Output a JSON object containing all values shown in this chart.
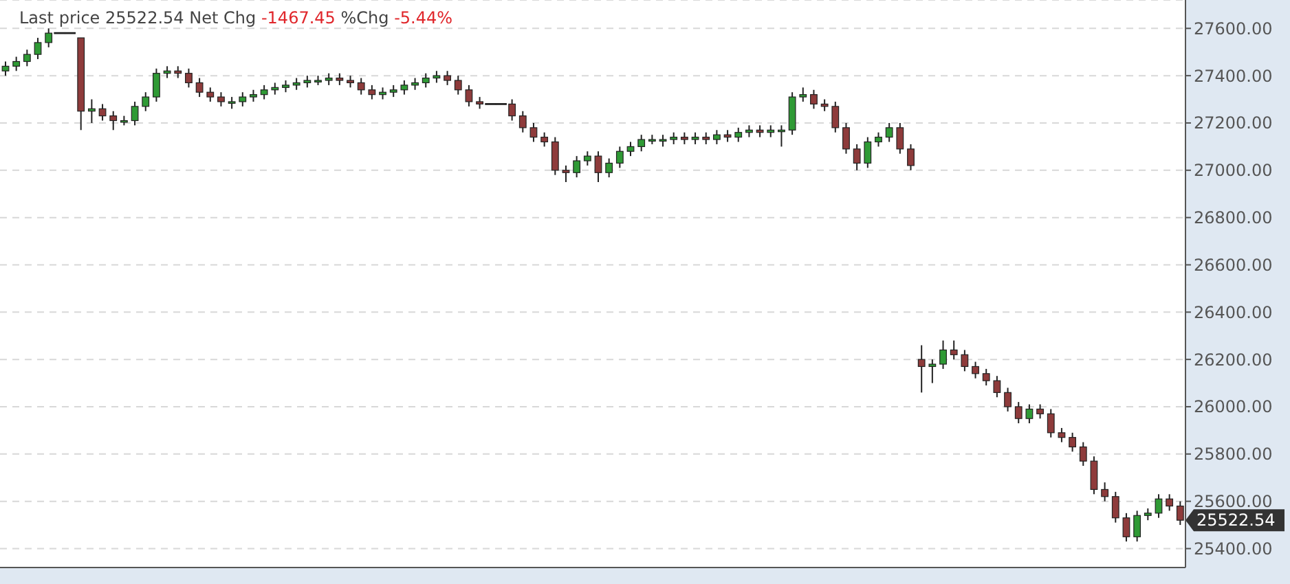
{
  "chart_data": {
    "type": "candlestick",
    "title": "Last price 25522.54 Net Chg -1467.45 %Chg -5.44%",
    "categories": [
      null,
      null,
      null,
      null,
      null,
      null,
      null,
      null,
      null,
      null,
      null,
      null,
      null,
      null,
      null,
      null,
      null,
      null,
      null,
      null,
      null,
      null,
      null,
      null,
      null,
      null,
      null,
      null,
      null,
      null,
      null,
      null,
      null,
      null,
      null,
      null,
      null,
      null,
      null,
      null,
      null,
      null,
      null,
      null,
      null,
      null,
      null,
      null,
      null,
      null,
      null,
      null,
      null,
      null,
      null,
      null,
      null,
      null,
      null,
      null,
      null,
      null,
      null,
      null,
      null,
      null,
      null,
      null,
      null,
      null,
      null,
      null,
      null,
      null,
      null,
      null,
      null,
      null,
      null,
      null,
      null,
      null,
      null,
      null,
      null,
      null,
      null,
      null,
      null,
      null,
      null,
      null,
      null,
      null,
      null,
      null,
      null,
      null,
      null,
      null,
      null,
      null,
      null,
      null,
      null,
      null,
      null,
      null,
      null,
      null
    ],
    "ohlc": [
      [
        27420,
        27460,
        27400,
        27440
      ],
      [
        27440,
        27480,
        27420,
        27460
      ],
      [
        27460,
        27510,
        27440,
        27490
      ],
      [
        27490,
        27560,
        27470,
        27540
      ],
      [
        27540,
        27600,
        27520,
        27580
      ],
      [
        27580,
        27580,
        27580,
        27580
      ],
      [
        27580,
        27580,
        27580,
        27580
      ],
      [
        27560,
        27560,
        27170,
        27250
      ],
      [
        27250,
        27300,
        27200,
        27260
      ],
      [
        27260,
        27280,
        27210,
        27230
      ],
      [
        27230,
        27250,
        27170,
        27210
      ],
      [
        27210,
        27230,
        27190,
        27210
      ],
      [
        27210,
        27290,
        27190,
        27270
      ],
      [
        27270,
        27330,
        27250,
        27310
      ],
      [
        27310,
        27430,
        27290,
        27410
      ],
      [
        27410,
        27440,
        27390,
        27420
      ],
      [
        27420,
        27440,
        27390,
        27410
      ],
      [
        27410,
        27430,
        27350,
        27370
      ],
      [
        27370,
        27390,
        27310,
        27330
      ],
      [
        27330,
        27350,
        27290,
        27310
      ],
      [
        27310,
        27330,
        27270,
        27290
      ],
      [
        27290,
        27310,
        27260,
        27290
      ],
      [
        27290,
        27330,
        27270,
        27310
      ],
      [
        27310,
        27340,
        27290,
        27320
      ],
      [
        27320,
        27360,
        27300,
        27340
      ],
      [
        27340,
        27370,
        27320,
        27350
      ],
      [
        27350,
        27380,
        27330,
        27360
      ],
      [
        27360,
        27390,
        27340,
        27370
      ],
      [
        27370,
        27400,
        27350,
        27380
      ],
      [
        27380,
        27400,
        27360,
        27380
      ],
      [
        27380,
        27410,
        27360,
        27390
      ],
      [
        27390,
        27410,
        27360,
        27380
      ],
      [
        27380,
        27400,
        27350,
        27370
      ],
      [
        27370,
        27390,
        27320,
        27340
      ],
      [
        27340,
        27360,
        27300,
        27320
      ],
      [
        27320,
        27350,
        27300,
        27330
      ],
      [
        27330,
        27360,
        27310,
        27340
      ],
      [
        27340,
        27380,
        27320,
        27360
      ],
      [
        27360,
        27390,
        27340,
        27370
      ],
      [
        27370,
        27410,
        27350,
        27390
      ],
      [
        27390,
        27420,
        27370,
        27400
      ],
      [
        27400,
        27420,
        27360,
        27380
      ],
      [
        27380,
        27400,
        27320,
        27340
      ],
      [
        27340,
        27360,
        27270,
        27290
      ],
      [
        27290,
        27310,
        27260,
        27280
      ],
      [
        27280,
        27280,
        27280,
        27280
      ],
      [
        27280,
        27280,
        27280,
        27280
      ],
      [
        27280,
        27300,
        27210,
        27230
      ],
      [
        27230,
        27250,
        27160,
        27180
      ],
      [
        27180,
        27200,
        27120,
        27140
      ],
      [
        27140,
        27160,
        27100,
        27120
      ],
      [
        27120,
        27140,
        26980,
        27000
      ],
      [
        27000,
        27020,
        26950,
        26990
      ],
      [
        26990,
        27060,
        26970,
        27040
      ],
      [
        27040,
        27080,
        27020,
        27060
      ],
      [
        27060,
        27080,
        26950,
        26990
      ],
      [
        26990,
        27050,
        26970,
        27030
      ],
      [
        27030,
        27100,
        27010,
        27080
      ],
      [
        27080,
        27120,
        27060,
        27100
      ],
      [
        27100,
        27150,
        27080,
        27130
      ],
      [
        27130,
        27150,
        27110,
        27130
      ],
      [
        27130,
        27150,
        27100,
        27130
      ],
      [
        27130,
        27160,
        27110,
        27140
      ],
      [
        27140,
        27160,
        27110,
        27130
      ],
      [
        27130,
        27160,
        27110,
        27140
      ],
      [
        27140,
        27160,
        27110,
        27130
      ],
      [
        27130,
        27170,
        27110,
        27150
      ],
      [
        27150,
        27170,
        27120,
        27140
      ],
      [
        27140,
        27180,
        27120,
        27160
      ],
      [
        27160,
        27190,
        27140,
        27170
      ],
      [
        27170,
        27190,
        27140,
        27160
      ],
      [
        27160,
        27190,
        27140,
        27170
      ],
      [
        27170,
        27190,
        27100,
        27170
      ],
      [
        27170,
        27330,
        27150,
        27310
      ],
      [
        27310,
        27350,
        27290,
        27320
      ],
      [
        27320,
        27340,
        27260,
        27280
      ],
      [
        27280,
        27300,
        27250,
        27270
      ],
      [
        27270,
        27290,
        27160,
        27180
      ],
      [
        27180,
        27200,
        27070,
        27090
      ],
      [
        27090,
        27110,
        27000,
        27030
      ],
      [
        27030,
        27140,
        27010,
        27120
      ],
      [
        27120,
        27160,
        27100,
        27140
      ],
      [
        27140,
        27200,
        27120,
        27180
      ],
      [
        27180,
        27200,
        27070,
        27090
      ],
      [
        27090,
        27110,
        27000,
        27020
      ],
      [
        26200,
        26260,
        26060,
        26170
      ],
      [
        26170,
        26200,
        26100,
        26180
      ],
      [
        26180,
        26280,
        26160,
        26240
      ],
      [
        26240,
        26280,
        26200,
        26220
      ],
      [
        26220,
        26240,
        26150,
        26170
      ],
      [
        26170,
        26190,
        26120,
        26140
      ],
      [
        26140,
        26160,
        26090,
        26110
      ],
      [
        26110,
        26130,
        26040,
        26060
      ],
      [
        26060,
        26080,
        25980,
        26000
      ],
      [
        26000,
        26020,
        25930,
        25950
      ],
      [
        25950,
        26010,
        25930,
        25990
      ],
      [
        25990,
        26010,
        25950,
        25970
      ],
      [
        25970,
        25990,
        25870,
        25890
      ],
      [
        25890,
        25910,
        25850,
        25870
      ],
      [
        25870,
        25890,
        25810,
        25830
      ],
      [
        25830,
        25850,
        25750,
        25770
      ],
      [
        25770,
        25790,
        25630,
        25650
      ],
      [
        25650,
        25680,
        25600,
        25620
      ],
      [
        25620,
        25640,
        25510,
        25530
      ],
      [
        25530,
        25550,
        25430,
        25450
      ],
      [
        25450,
        25560,
        25430,
        25540
      ],
      [
        25540,
        25570,
        25520,
        25550
      ],
      [
        25550,
        25630,
        25530,
        25610
      ],
      [
        25610,
        25630,
        25560,
        25580
      ],
      [
        25580,
        25600,
        25500,
        25520
      ]
    ],
    "ylim": [
      25320,
      27720
    ],
    "yticks": [
      {
        "value": 25400,
        "label": "25400.00"
      },
      {
        "value": 25600,
        "label": "25600.00"
      },
      {
        "value": 25800,
        "label": "25800.00"
      },
      {
        "value": 26000,
        "label": "26000.00"
      },
      {
        "value": 26200,
        "label": "26200.00"
      },
      {
        "value": 26400,
        "label": "26400.00"
      },
      {
        "value": 26600,
        "label": "26600.00"
      },
      {
        "value": 26800,
        "label": "26800.00"
      },
      {
        "value": 27000,
        "label": "27000.00"
      },
      {
        "value": 27200,
        "label": "27200.00"
      },
      {
        "value": 27400,
        "label": "27400.00"
      },
      {
        "value": 27600,
        "label": "27600.00"
      }
    ],
    "annotations": [
      "25522.54"
    ],
    "grid": "y",
    "tick_labels": "y"
  }
}
